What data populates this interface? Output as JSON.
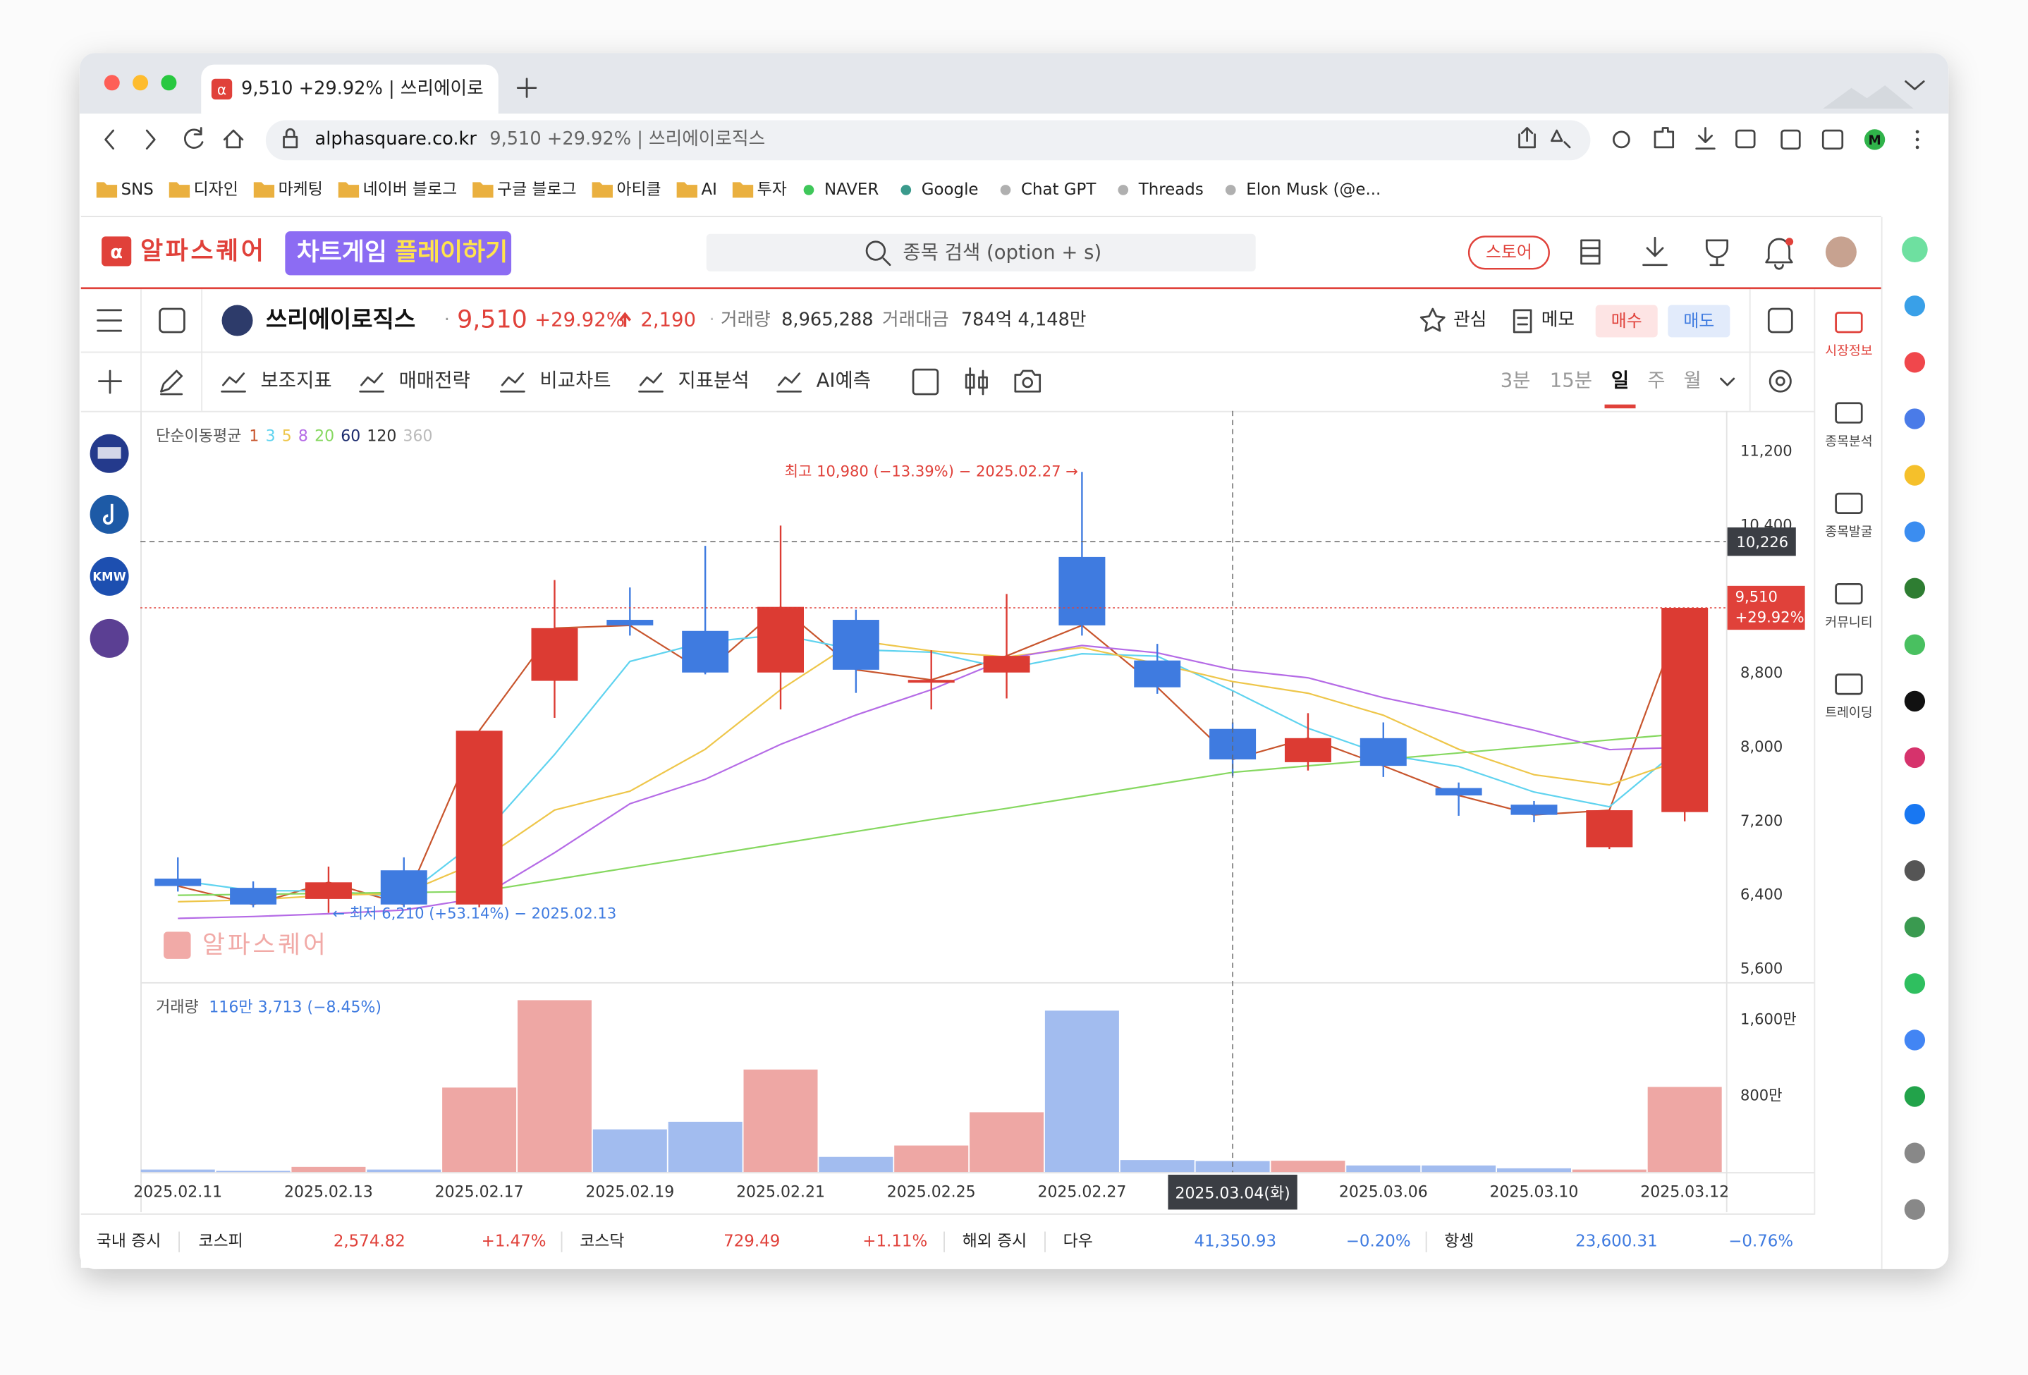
{
  "browser": {
    "tab_title": "9,510 +29.92% | 쓰리에이로",
    "url_domain": "alphasquare.co.kr",
    "url_title": "9,510 +29.92% | 쓰리에이로직스",
    "bookmark_folders": [
      "SNS",
      "디자인",
      "마케팅",
      "네이버 블로그",
      "구글 블로그",
      "아티클",
      "AI",
      "투자"
    ],
    "bookmark_links": [
      {
        "name": "NAVER",
        "color": "#3fc75a"
      },
      {
        "name": "Google",
        "color": "#3a9a8c"
      },
      {
        "name": "Chat GPT",
        "color": "#b0b0b0"
      },
      {
        "name": "Threads",
        "color": "#b0b0b0"
      },
      {
        "name": "Elon Musk (@e...",
        "color": "#b0b0b0"
      }
    ]
  },
  "header": {
    "logo": "알파스퀘어",
    "banner_prefix": "차트게임",
    "banner_highlight": "플레이하기",
    "search_placeholder": "종목 검색 (option + s)",
    "store": "스토어"
  },
  "stock": {
    "name": "쓰리에이로직스",
    "price": "9,510",
    "change_pct": "+29.92%",
    "change": "2,190",
    "volume_label": "거래량",
    "volume": "8,965,288",
    "amount_label": "거래대금",
    "amount": "784억 4,148만",
    "watch": "관심",
    "memo": "메모",
    "buy": "매수",
    "sell": "매도"
  },
  "toolbar": {
    "items": [
      "보조지표",
      "매매전략",
      "비교차트",
      "지표분석",
      "AI예측"
    ],
    "timeframes": [
      "3분",
      "15분",
      "일",
      "주",
      "월"
    ],
    "active_timeframe": 2
  },
  "side_menu": [
    "시장정보",
    "종목분석",
    "종목발굴",
    "커뮤니티",
    "트레이딩"
  ],
  "watchlist_badge": "KMW",
  "chart_data": {
    "type": "candlestick",
    "up_color": "#dc3b33",
    "down_color": "#3f7be0",
    "categories": [
      "2025.02.11",
      null,
      "2025.02.13",
      null,
      "2025.02.17",
      null,
      "2025.02.19",
      null,
      "2025.02.21",
      null,
      "2025.02.25",
      null,
      "2025.02.27",
      null,
      "2025.03.04(화)",
      null,
      "2025.03.06",
      null,
      "2025.03.10",
      null,
      "2025.03.12"
    ],
    "open": [
      6580,
      6480,
      6360,
      6670,
      6300,
      8720,
      9380,
      9260,
      8810,
      9380,
      8700,
      8810,
      10060,
      8940,
      8200,
      7840,
      8100,
      7560,
      7380,
      6920,
      7300
    ],
    "high": [
      6810,
      6550,
      6710,
      6810,
      8180,
      9810,
      9730,
      10180,
      10400,
      9490,
      9050,
      9660,
      10980,
      9120,
      8270,
      8370,
      8270,
      7620,
      7420,
      7330,
      9510
    ],
    "low": [
      6440,
      6270,
      6210,
      6270,
      6270,
      8320,
      9210,
      8790,
      8410,
      8590,
      8410,
      8530,
      9210,
      8580,
      7690,
      7750,
      7680,
      7260,
      7190,
      6900,
      7200
    ],
    "close": [
      6500,
      6300,
      6540,
      6300,
      8180,
      9290,
      9320,
      8810,
      9520,
      8840,
      8730,
      8990,
      9320,
      8650,
      7870,
      8100,
      7800,
      7480,
      7270,
      7320,
      9510
    ],
    "ylim": [
      5460,
      11640
    ],
    "yticks": [
      {
        "value": 5600,
        "label": "5,600"
      },
      {
        "value": 6400,
        "label": "6,400"
      },
      {
        "value": 7200,
        "label": "7,200"
      },
      {
        "value": 8000,
        "label": "8,000"
      },
      {
        "value": 8800,
        "label": "8,800"
      },
      {
        "value": 10400,
        "label": "10,400"
      },
      {
        "value": 11200,
        "label": "11,200"
      }
    ],
    "ma_label": "단순이동평균",
    "moving_averages": [
      {
        "name": "1",
        "color": "#c8552d",
        "values": [
          6500,
          6300,
          6540,
          6300,
          8180,
          9290,
          9320,
          8810,
          9520,
          8840,
          8730,
          8990,
          9320,
          8650,
          7870,
          8100,
          7800,
          7480,
          7270,
          7320,
          9510
        ]
      },
      {
        "name": "3",
        "color": "#5fd3ef",
        "values": [
          6560,
          6450,
          6447,
          6380,
          7007,
          7923,
          8930,
          9140,
          9217,
          9057,
          9030,
          8853,
          9013,
          8987,
          8613,
          8207,
          7923,
          7793,
          7517,
          7357,
          8033
        ]
      },
      {
        "name": "5",
        "color": "#eec64a",
        "values": [
          6330,
          6350,
          6400,
          6420,
          6764,
          7322,
          7526,
          7980,
          8624,
          9156,
          9044,
          8978,
          9080,
          8906,
          8712,
          8586,
          8348,
          7980,
          7704,
          7594,
          7876
        ]
      },
      {
        "name": "8",
        "color": "#b56be6",
        "values": [
          6150,
          6170,
          6200,
          6240,
          6370,
          6860,
          7390,
          7655,
          8033,
          8350,
          8624,
          8960,
          9103,
          9023,
          8841,
          8753,
          8538,
          8368,
          8185,
          7976,
          8000
        ]
      },
      {
        "name": "20",
        "color": "#86d860",
        "values": [
          6400,
          6410,
          6420,
          6430,
          6440,
          6570,
          6700,
          6830,
          6960,
          7090,
          7220,
          7340,
          7470,
          7600,
          7730,
          7800,
          7870,
          7940,
          8010,
          8080,
          8150
        ]
      },
      {
        "name": "60",
        "color": "#1c2b6e"
      },
      {
        "name": "120",
        "color": "#333333"
      },
      {
        "name": "360",
        "color": "#bbbbbb"
      }
    ],
    "high_annotation": "최고 10,980 (−13.39%) − 2025.02.27 →",
    "low_annotation": "← 최저 6,210 (+53.14%) − 2025.02.13",
    "crosshair": {
      "index": 14,
      "price": 10226,
      "price_label": "10,226"
    },
    "volume": {
      "label": "거래량",
      "legend_value": "116만 3,713 (−8.45%)",
      "up_color": "#eea7a4",
      "down_color": "#a2bcef",
      "values": [
        27,
        13,
        55,
        27,
        890,
        1810,
        450,
        530,
        1080,
        160,
        280,
        630,
        1700,
        127.13,
        116.3713,
        120,
        70,
        70,
        40,
        27,
        896.5288
      ],
      "ylim": [
        0,
        2000
      ],
      "yticks": [
        {
          "value": 800,
          "label": "800만"
        },
        {
          "value": 1600,
          "label": "1,600만"
        }
      ]
    }
  },
  "market_bar": {
    "domestic": "국내 증시",
    "overseas": "해외 증시",
    "indices": [
      {
        "name": "코스피",
        "value": "2,574.82",
        "change": "+1.47%",
        "color": "#e0413a"
      },
      {
        "name": "코스닥",
        "value": "729.49",
        "change": "+1.11%",
        "color": "#e0413a"
      },
      {
        "name": "다우",
        "value": "41,350.93",
        "change": "−0.20%",
        "color": "#3f7be0"
      },
      {
        "name": "항셍",
        "value": "23,600.31",
        "change": "−0.76%",
        "color": "#3f7be0"
      }
    ]
  }
}
